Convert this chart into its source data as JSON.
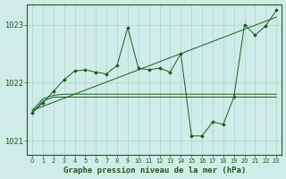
{
  "title": "Graphe pression niveau de la mer (hPa)",
  "bg_color": "#d0ece8",
  "grid_color": "#aad4cc",
  "line_color": "#1a5c1a",
  "xlim": [
    -0.5,
    23.5
  ],
  "ylim": [
    1020.75,
    1023.35
  ],
  "yticks": [
    1021,
    1022,
    1023
  ],
  "xticks": [
    0,
    1,
    2,
    3,
    4,
    5,
    6,
    7,
    8,
    9,
    10,
    11,
    12,
    13,
    14,
    15,
    16,
    17,
    18,
    19,
    20,
    21,
    22,
    23
  ],
  "trend_y": [
    1021.52,
    1021.59,
    1021.66,
    1021.73,
    1021.8,
    1021.87,
    1021.94,
    1022.01,
    1022.08,
    1022.15,
    1022.22,
    1022.29,
    1022.36,
    1022.43,
    1022.5,
    1022.57,
    1022.64,
    1022.71,
    1022.78,
    1022.85,
    1022.92,
    1022.99,
    1023.06,
    1023.13
  ],
  "flat1_y": [
    1021.52,
    1021.72,
    1021.78,
    1021.8,
    1021.8,
    1021.8,
    1021.8,
    1021.8,
    1021.8,
    1021.8,
    1021.8,
    1021.8,
    1021.8,
    1021.8,
    1021.8,
    1021.8,
    1021.8,
    1021.8,
    1021.8,
    1021.8,
    1021.8,
    1021.8,
    1021.8,
    1021.8
  ],
  "flat2_y": [
    1021.48,
    1021.68,
    1021.75,
    1021.75,
    1021.75,
    1021.75,
    1021.75,
    1021.75,
    1021.75,
    1021.75,
    1021.75,
    1021.75,
    1021.75,
    1021.75,
    1021.75,
    1021.75,
    1021.75,
    1021.75,
    1021.75,
    1021.75,
    1021.75,
    1021.75,
    1021.75,
    1021.75
  ],
  "main_y": [
    1021.48,
    1021.65,
    1021.85,
    1022.05,
    1022.2,
    1022.22,
    1022.18,
    1022.15,
    1022.3,
    1022.95,
    1022.25,
    1022.22,
    1022.25,
    1022.18,
    1022.5,
    1021.08,
    1021.08,
    1021.32,
    1021.28,
    1021.75,
    1023.0,
    1022.82,
    1022.98,
    1023.25
  ]
}
